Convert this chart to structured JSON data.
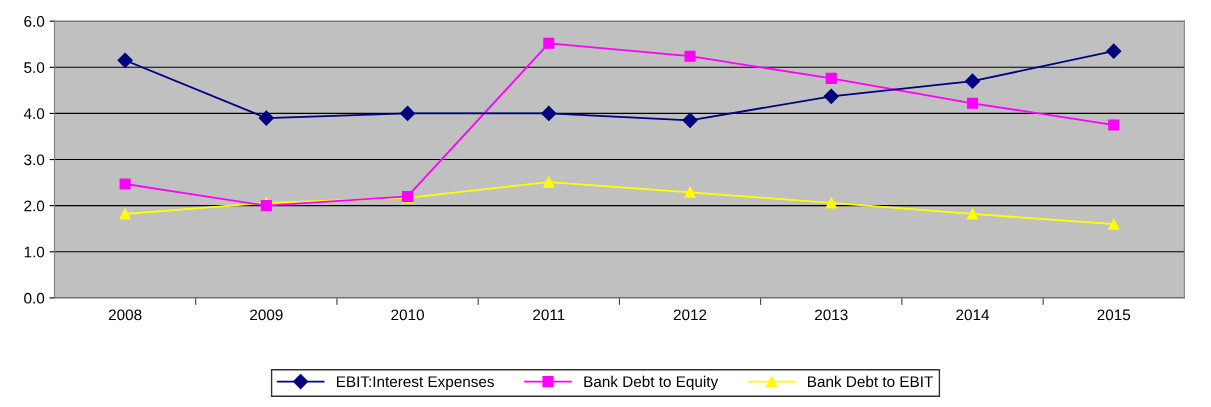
{
  "chart_data": {
    "type": "line",
    "categories": [
      "2008",
      "2009",
      "2010",
      "2011",
      "2012",
      "2013",
      "2014",
      "2015"
    ],
    "series": [
      {
        "name": "EBIT:Interest Expenses",
        "color": "#000080",
        "marker": "diamond",
        "values": [
          5.15,
          3.9,
          4.0,
          4.0,
          3.85,
          4.37,
          4.7,
          5.35
        ]
      },
      {
        "name": "Bank Debt to Equity",
        "color": "#ff00ff",
        "marker": "square",
        "values": [
          2.47,
          2.0,
          2.2,
          5.52,
          5.24,
          4.76,
          4.22,
          3.75
        ]
      },
      {
        "name": "Bank Debt to EBIT",
        "color": "#ffff00",
        "marker": "triangle",
        "values": [
          1.82,
          2.06,
          2.17,
          2.51,
          2.29,
          2.06,
          1.82,
          1.6
        ]
      }
    ],
    "ylim": [
      0,
      6
    ],
    "yticks": [
      {
        "value": 0,
        "label": "0.0"
      },
      {
        "value": 1,
        "label": "1.0"
      },
      {
        "value": 2,
        "label": "2.0"
      },
      {
        "value": 3,
        "label": "3.0"
      },
      {
        "value": 4,
        "label": "4.0"
      },
      {
        "value": 5,
        "label": "5.0"
      },
      {
        "value": 6,
        "label": "6.0"
      }
    ],
    "grid": "y",
    "legend": "bottom",
    "line_style": "solid"
  }
}
